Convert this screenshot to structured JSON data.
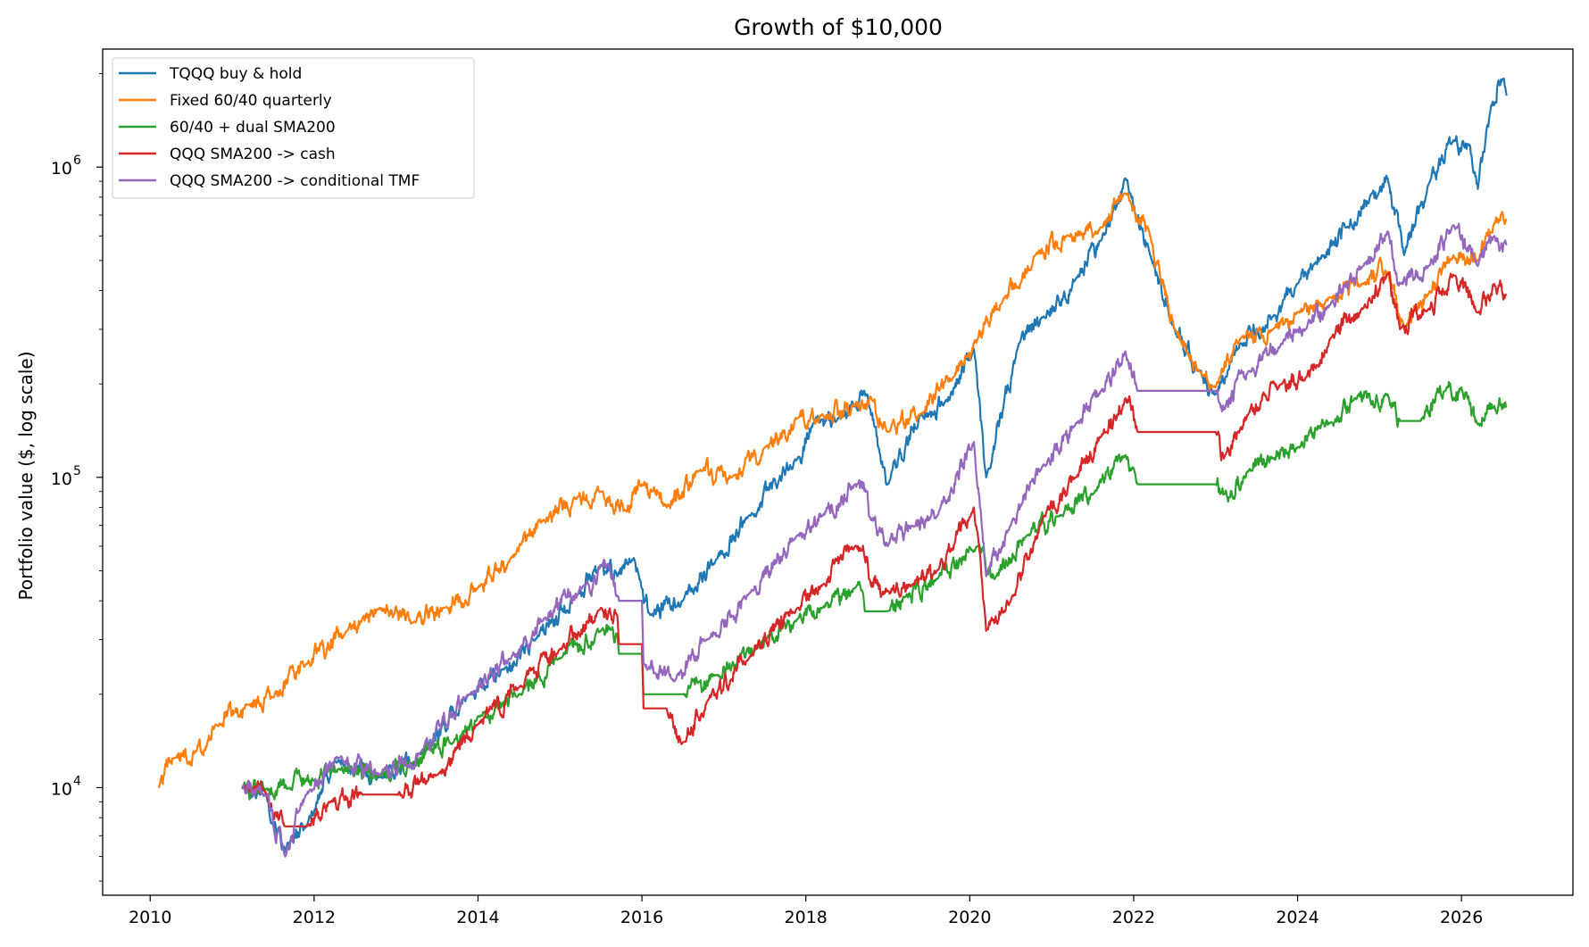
{
  "chart_data": {
    "type": "line",
    "title": "Growth of $10,000",
    "xlabel": "",
    "ylabel": "Portfolio value ($, log scale)",
    "yscale": "log",
    "xlim": [
      2009.42,
      2027.36
    ],
    "ylim": [
      4500,
      2400000
    ],
    "x_ticks": [
      2010,
      2012,
      2014,
      2016,
      2018,
      2020,
      2022,
      2024,
      2026
    ],
    "x_tick_labels": [
      "2010",
      "2012",
      "2014",
      "2016",
      "2018",
      "2020",
      "2022",
      "2024",
      "2026"
    ],
    "y_ticks": [
      10000,
      100000,
      1000000
    ],
    "y_tick_labels": [
      {
        "base": "10",
        "exp": "4"
      },
      {
        "base": "10",
        "exp": "5"
      },
      {
        "base": "10",
        "exp": "6"
      }
    ],
    "y_minor_ticks": [
      5000,
      6000,
      7000,
      8000,
      9000,
      20000,
      30000,
      40000,
      50000,
      60000,
      70000,
      80000,
      90000,
      200000,
      300000,
      400000,
      500000,
      600000,
      700000,
      800000,
      900000,
      2000000
    ],
    "grid": false,
    "legend_position": "top-left",
    "series": [
      {
        "name": "TQQQ buy & hold",
        "color": "#1f77b4",
        "points": [
          [
            2011.12,
            10000
          ],
          [
            2011.4,
            9800
          ],
          [
            2011.65,
            6200
          ],
          [
            2011.9,
            7500
          ],
          [
            2012.25,
            12200
          ],
          [
            2012.8,
            10800
          ],
          [
            2013.3,
            12800
          ],
          [
            2013.9,
            20000
          ],
          [
            2014.3,
            24000
          ],
          [
            2014.7,
            30000
          ],
          [
            2015.2,
            42000
          ],
          [
            2015.5,
            52000
          ],
          [
            2015.7,
            48000
          ],
          [
            2015.9,
            55000
          ],
          [
            2016.1,
            36000
          ],
          [
            2016.5,
            40000
          ],
          [
            2016.9,
            54000
          ],
          [
            2017.3,
            75000
          ],
          [
            2017.9,
            115000
          ],
          [
            2018.1,
            150000
          ],
          [
            2018.4,
            155000
          ],
          [
            2018.75,
            185000
          ],
          [
            2018.9,
            120000
          ],
          [
            2019.0,
            95000
          ],
          [
            2019.4,
            160000
          ],
          [
            2019.7,
            175000
          ],
          [
            2020.05,
            260000
          ],
          [
            2020.2,
            100000
          ],
          [
            2020.6,
            270000
          ],
          [
            2020.9,
            330000
          ],
          [
            2021.3,
            440000
          ],
          [
            2021.6,
            580000
          ],
          [
            2021.9,
            920000
          ],
          [
            2022.2,
            520000
          ],
          [
            2022.5,
            300000
          ],
          [
            2022.8,
            220000
          ],
          [
            2023.0,
            185000
          ],
          [
            2023.3,
            270000
          ],
          [
            2023.7,
            330000
          ],
          [
            2024.0,
            420000
          ],
          [
            2024.3,
            520000
          ],
          [
            2024.6,
            640000
          ],
          [
            2024.9,
            820000
          ],
          [
            2025.1,
            920000
          ],
          [
            2025.3,
            520000
          ],
          [
            2025.6,
            880000
          ],
          [
            2025.9,
            1220000
          ],
          [
            2026.1,
            1180000
          ],
          [
            2026.2,
            850000
          ],
          [
            2026.35,
            1500000
          ],
          [
            2026.45,
            1900000
          ],
          [
            2026.55,
            1700000
          ]
        ]
      },
      {
        "name": "Fixed 60/40 quarterly",
        "color": "#ff7f0e",
        "points": [
          [
            2010.1,
            10000
          ],
          [
            2010.3,
            12500
          ],
          [
            2010.55,
            13000
          ],
          [
            2010.8,
            16000
          ],
          [
            2011.2,
            18500
          ],
          [
            2011.5,
            19500
          ],
          [
            2011.9,
            25000
          ],
          [
            2012.4,
            32000
          ],
          [
            2012.8,
            38000
          ],
          [
            2013.2,
            34000
          ],
          [
            2013.6,
            38000
          ],
          [
            2014.0,
            44000
          ],
          [
            2014.4,
            55000
          ],
          [
            2014.8,
            73000
          ],
          [
            2015.2,
            85000
          ],
          [
            2015.5,
            90000
          ],
          [
            2015.8,
            78000
          ],
          [
            2016.0,
            95000
          ],
          [
            2016.3,
            80000
          ],
          [
            2016.7,
            105000
          ],
          [
            2017.1,
            100000
          ],
          [
            2017.5,
            125000
          ],
          [
            2017.9,
            155000
          ],
          [
            2018.2,
            160000
          ],
          [
            2018.6,
            170000
          ],
          [
            2018.8,
            180000
          ],
          [
            2019.0,
            140000
          ],
          [
            2019.4,
            160000
          ],
          [
            2019.8,
            210000
          ],
          [
            2020.1,
            280000
          ],
          [
            2020.2,
            330000
          ],
          [
            2020.4,
            370000
          ],
          [
            2020.8,
            520000
          ],
          [
            2021.2,
            600000
          ],
          [
            2021.6,
            640000
          ],
          [
            2021.9,
            820000
          ],
          [
            2022.2,
            600000
          ],
          [
            2022.5,
            300000
          ],
          [
            2022.8,
            220000
          ],
          [
            2023.0,
            195000
          ],
          [
            2023.3,
            280000
          ],
          [
            2023.7,
            300000
          ],
          [
            2024.0,
            340000
          ],
          [
            2024.4,
            380000
          ],
          [
            2024.8,
            420000
          ],
          [
            2025.1,
            460000
          ],
          [
            2025.3,
            300000
          ],
          [
            2025.6,
            390000
          ],
          [
            2025.9,
            520000
          ],
          [
            2026.2,
            500000
          ],
          [
            2026.4,
            660000
          ],
          [
            2026.55,
            680000
          ]
        ]
      },
      {
        "name": "60/40 + dual SMA200",
        "color": "#2ca02c",
        "points": [
          [
            2011.12,
            10000
          ],
          [
            2011.4,
            9800
          ],
          [
            2011.7,
            10000
          ],
          [
            2012.0,
            10500
          ],
          [
            2012.3,
            11500
          ],
          [
            2012.8,
            11000
          ],
          [
            2013.2,
            12000
          ],
          [
            2013.7,
            14000
          ],
          [
            2014.0,
            17000
          ],
          [
            2014.5,
            20000
          ],
          [
            2015.0,
            26000
          ],
          [
            2015.5,
            32000
          ],
          [
            2015.7,
            31000
          ],
          [
            2015.72,
            27000
          ],
          [
            2016.0,
            27000
          ],
          [
            2016.02,
            20000
          ],
          [
            2016.5,
            20000
          ],
          [
            2016.9,
            23000
          ],
          [
            2017.4,
            28000
          ],
          [
            2017.9,
            35000
          ],
          [
            2018.2,
            38000
          ],
          [
            2018.6,
            44000
          ],
          [
            2018.7,
            42000
          ],
          [
            2018.72,
            37000
          ],
          [
            2019.0,
            37000
          ],
          [
            2019.2,
            41000
          ],
          [
            2019.6,
            47000
          ],
          [
            2020.1,
            60000
          ],
          [
            2020.3,
            47000
          ],
          [
            2020.7,
            65000
          ],
          [
            2021.1,
            75000
          ],
          [
            2021.5,
            88000
          ],
          [
            2021.9,
            118000
          ],
          [
            2022.05,
            95000
          ],
          [
            2022.5,
            95000
          ],
          [
            2023.0,
            95000
          ],
          [
            2023.1,
            88000
          ],
          [
            2023.4,
            105000
          ],
          [
            2023.7,
            115000
          ],
          [
            2024.0,
            125000
          ],
          [
            2024.4,
            150000
          ],
          [
            2024.7,
            180000
          ],
          [
            2025.1,
            185000
          ],
          [
            2025.25,
            152000
          ],
          [
            2025.5,
            152000
          ],
          [
            2025.8,
            190000
          ],
          [
            2026.0,
            195000
          ],
          [
            2026.2,
            148000
          ],
          [
            2026.4,
            170000
          ],
          [
            2026.55,
            168000
          ]
        ]
      },
      {
        "name": "QQQ SMA200 -> cash",
        "color": "#d62728",
        "points": [
          [
            2011.12,
            10000
          ],
          [
            2011.4,
            9700
          ],
          [
            2011.65,
            7500
          ],
          [
            2011.9,
            7500
          ],
          [
            2012.2,
            9000
          ],
          [
            2012.6,
            9500
          ],
          [
            2013.0,
            9500
          ],
          [
            2013.5,
            11000
          ],
          [
            2014.0,
            16000
          ],
          [
            2014.5,
            21000
          ],
          [
            2015.0,
            28000
          ],
          [
            2015.5,
            38000
          ],
          [
            2015.7,
            36000
          ],
          [
            2015.72,
            29000
          ],
          [
            2016.0,
            29000
          ],
          [
            2016.02,
            18000
          ],
          [
            2016.3,
            18000
          ],
          [
            2016.5,
            14000
          ],
          [
            2016.8,
            19000
          ],
          [
            2017.3,
            26000
          ],
          [
            2017.9,
            38000
          ],
          [
            2018.2,
            45000
          ],
          [
            2018.6,
            60000
          ],
          [
            2018.75,
            55000
          ],
          [
            2018.77,
            47000
          ],
          [
            2019.0,
            43000
          ],
          [
            2019.3,
            45000
          ],
          [
            2019.6,
            50000
          ],
          [
            2020.05,
            80000
          ],
          [
            2020.2,
            32000
          ],
          [
            2020.5,
            40000
          ],
          [
            2020.9,
            75000
          ],
          [
            2021.3,
            100000
          ],
          [
            2021.6,
            135000
          ],
          [
            2021.9,
            180000
          ],
          [
            2022.05,
            140000
          ],
          [
            2022.5,
            140000
          ],
          [
            2023.0,
            140000
          ],
          [
            2023.1,
            115000
          ],
          [
            2023.4,
            160000
          ],
          [
            2023.8,
            200000
          ],
          [
            2024.1,
            210000
          ],
          [
            2024.4,
            280000
          ],
          [
            2024.8,
            350000
          ],
          [
            2025.1,
            450000
          ],
          [
            2025.25,
            300000
          ],
          [
            2025.6,
            350000
          ],
          [
            2025.9,
            450000
          ],
          [
            2026.2,
            340000
          ],
          [
            2026.4,
            420000
          ],
          [
            2026.55,
            390000
          ]
        ]
      },
      {
        "name": "QQQ SMA200 -> conditional TMF",
        "color": "#9467bd",
        "points": [
          [
            2011.12,
            10000
          ],
          [
            2011.4,
            9500
          ],
          [
            2011.65,
            6000
          ],
          [
            2011.9,
            9500
          ],
          [
            2012.3,
            12500
          ],
          [
            2012.8,
            11000
          ],
          [
            2013.3,
            13000
          ],
          [
            2013.9,
            20000
          ],
          [
            2014.4,
            26000
          ],
          [
            2014.8,
            35000
          ],
          [
            2015.3,
            45000
          ],
          [
            2015.6,
            52000
          ],
          [
            2015.72,
            40000
          ],
          [
            2016.0,
            40000
          ],
          [
            2016.02,
            25000
          ],
          [
            2016.4,
            22000
          ],
          [
            2016.8,
            30000
          ],
          [
            2017.3,
            42000
          ],
          [
            2017.9,
            65000
          ],
          [
            2018.2,
            75000
          ],
          [
            2018.6,
            95000
          ],
          [
            2018.75,
            90000
          ],
          [
            2018.77,
            75000
          ],
          [
            2019.0,
            60000
          ],
          [
            2019.3,
            70000
          ],
          [
            2019.6,
            75000
          ],
          [
            2020.05,
            130000
          ],
          [
            2020.2,
            48000
          ],
          [
            2020.5,
            70000
          ],
          [
            2020.9,
            110000
          ],
          [
            2021.3,
            150000
          ],
          [
            2021.6,
            190000
          ],
          [
            2021.9,
            255000
          ],
          [
            2022.05,
            190000
          ],
          [
            2022.5,
            190000
          ],
          [
            2023.0,
            190000
          ],
          [
            2023.1,
            165000
          ],
          [
            2023.4,
            220000
          ],
          [
            2023.8,
            270000
          ],
          [
            2024.1,
            300000
          ],
          [
            2024.4,
            360000
          ],
          [
            2024.8,
            480000
          ],
          [
            2025.1,
            620000
          ],
          [
            2025.25,
            420000
          ],
          [
            2025.6,
            480000
          ],
          [
            2025.9,
            650000
          ],
          [
            2026.2,
            480000
          ],
          [
            2026.4,
            600000
          ],
          [
            2026.55,
            560000
          ]
        ]
      }
    ]
  }
}
